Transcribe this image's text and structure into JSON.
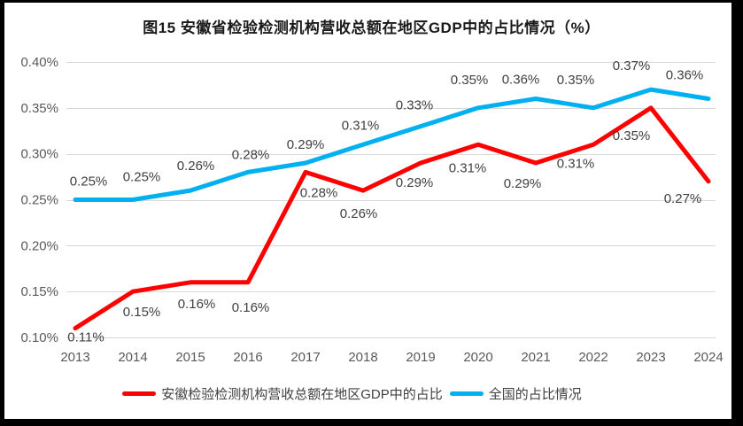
{
  "title": "图15 安徽省检验检测机构营收总额在地区GDP中的占比情况（%）",
  "chart_data": {
    "type": "line",
    "categories": [
      "2013",
      "2014",
      "2015",
      "2016",
      "2017",
      "2018",
      "2019",
      "2020",
      "2021",
      "2022",
      "2023",
      "2024"
    ],
    "series": [
      {
        "name": "安徽检验检测机构营收总额在地区GDP中的占比",
        "color": "#FF0000",
        "values": [
          0.11,
          0.15,
          0.16,
          0.16,
          0.28,
          0.26,
          0.29,
          0.31,
          0.29,
          0.31,
          0.35,
          0.27
        ],
        "labels": [
          "0.11%",
          "0.15%",
          "0.16%",
          "0.16%",
          "0.28%",
          "0.26%",
          "0.29%",
          "0.31%",
          "0.29%",
          "0.31%",
          "0.35%",
          "0.27%"
        ]
      },
      {
        "name": "全国的占比情况",
        "color": "#00B0F0",
        "values": [
          0.25,
          0.25,
          0.26,
          0.28,
          0.29,
          0.31,
          0.33,
          0.35,
          0.36,
          0.35,
          0.37,
          0.36
        ],
        "labels": [
          "0.25%",
          "0.25%",
          "0.26%",
          "0.28%",
          "0.29%",
          "0.31%",
          "0.33%",
          "0.35%",
          "0.36%",
          "0.35%",
          "0.37%",
          "0.36%"
        ]
      }
    ],
    "xlabel": "",
    "ylabel": "",
    "ylim": [
      0.1,
      0.4
    ],
    "ytick_values": [
      0.4,
      0.35,
      0.3,
      0.25,
      0.2,
      0.15,
      0.1
    ],
    "ytick_labels": [
      "0.40%",
      "0.35%",
      "0.30%",
      "0.25%",
      "0.20%",
      "0.15%",
      "0.10%"
    ],
    "grid": true,
    "legend_position": "bottom",
    "colors": {
      "gridline": "#D9D9D9",
      "tick_text": "#595959",
      "data_label_text": "#404040",
      "frame_border": "#000000",
      "background": "#FFFFFF"
    }
  }
}
